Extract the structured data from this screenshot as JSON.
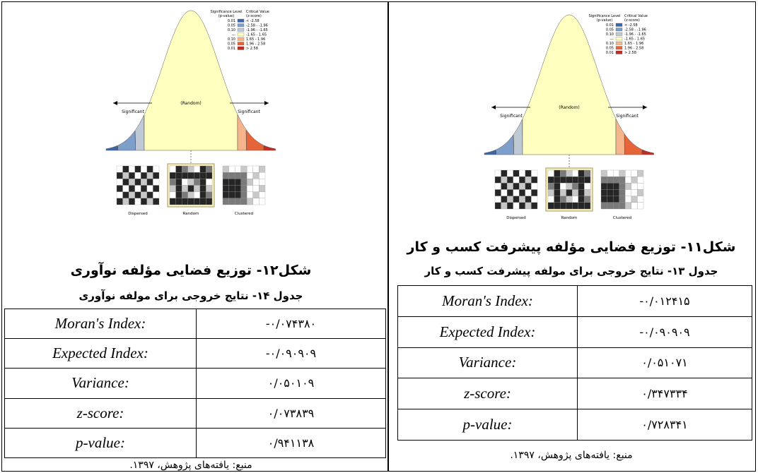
{
  "figure": {
    "legend_heading_p": [
      "Significance Level",
      "(p-value)"
    ],
    "legend_heading_z": [
      "Critical Value",
      "(z-score)"
    ],
    "p_values": [
      "0.01",
      "0.05",
      "0.10",
      "---",
      "0.10",
      "0.05",
      "0.01"
    ],
    "z_ranges": [
      "< -2.58",
      "-2.58 - -1.96",
      "-1.96 - -1.65",
      "-1.65 - 1.65",
      "1.65 - 1.96",
      "1.96 - 2.58",
      "> 2.58"
    ],
    "colors": [
      "#3d66a8",
      "#7f9fcb",
      "#bfc9d6",
      "#ffffc0",
      "#f5b48a",
      "#e5643a",
      "#c42a22"
    ],
    "significant": "Significant",
    "random_label": "(Random)",
    "maps": [
      "Dispersed",
      "Random",
      "Clustered"
    ]
  },
  "panels": [
    {
      "caption": "شکل۱۲- توزیع فضایی مؤلفه نوآوری",
      "table_title": "جدول ۱۴- نتایج خروجی برای مولفه نوآوری",
      "rows": [
        [
          "Moran's Index:",
          "-۰/۰۷۴۳۸۰"
        ],
        [
          "Expected Index:",
          "-۰/۰۹۰۹۰۹"
        ],
        [
          "Variance:",
          "۰/۰۵۰۱۰۹"
        ],
        [
          "z-score:",
          "۰/۰۷۳۸۳۹"
        ],
        [
          "p-value:",
          "۰/۹۴۱۱۳۸"
        ]
      ],
      "source": "منبع: یافته‌های پژوهش، ۱۳۹۷."
    },
    {
      "caption": "شکل۱۱- توزیع فضایی مؤلفه پیشرفت کسب و کار",
      "table_title": "جدول ۱۳- نتایج خروجی برای مولفه پیشرفت کسب و کار",
      "rows": [
        [
          "Moran's Index:",
          "-۰/۰۱۲۴۱۵"
        ],
        [
          "Expected Index:",
          "-۰/۰۹۰۹۰۹"
        ],
        [
          "Variance:",
          "۰/۰۵۱۰۷۱"
        ],
        [
          "z-score:",
          "۰/۳۴۷۳۳۴"
        ],
        [
          "p-value:",
          "۰/۷۲۸۳۴۱"
        ]
      ],
      "source": "منبع: یافته‌های پژوهش، ۱۳۹۷."
    }
  ]
}
